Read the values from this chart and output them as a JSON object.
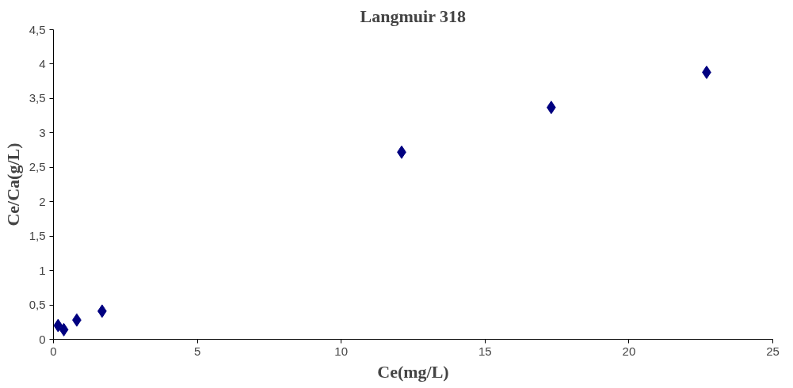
{
  "chart_data": {
    "type": "scatter",
    "title": "Langmuir 318",
    "xlabel": "Ce(mg/L)",
    "ylabel": "Ce/Ca(g/L)",
    "x": [
      0.16,
      0.36,
      0.81,
      1.69,
      12.1,
      17.3,
      22.7
    ],
    "series": [
      {
        "color": "#000080",
        "values": [
          0.2,
          0.14,
          0.28,
          0.41,
          2.72,
          3.37,
          3.88
        ]
      }
    ],
    "marker": "diamond",
    "xlim": [
      0,
      25
    ],
    "ylim": [
      0,
      4.5
    ],
    "xticks": [
      0,
      5,
      10,
      15,
      20,
      25
    ],
    "yticks": [
      0,
      {
        "value": 0.5,
        "label": "0,5"
      },
      1,
      {
        "value": 1.5,
        "label": "1,5"
      },
      2,
      {
        "value": 2.5,
        "label": "2,5"
      },
      3,
      {
        "value": 3.5,
        "label": "3,5"
      },
      4,
      {
        "value": 4.5,
        "label": "4,5"
      }
    ],
    "grid": false
  }
}
